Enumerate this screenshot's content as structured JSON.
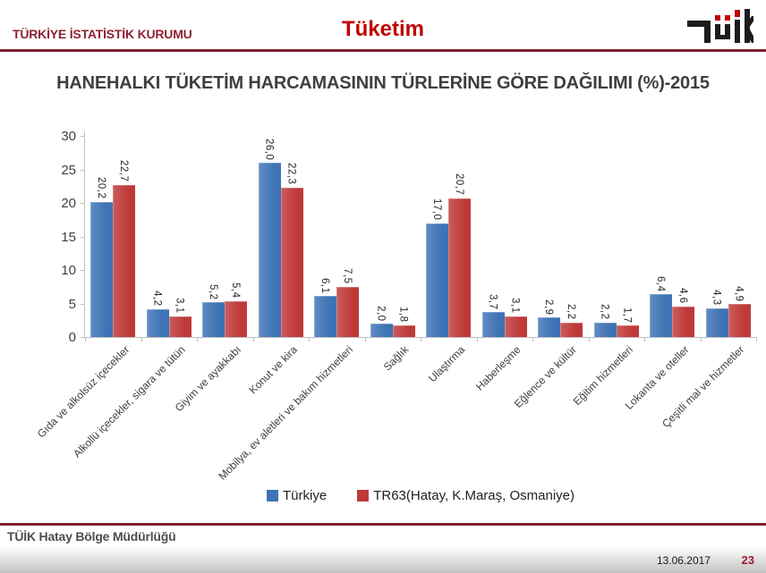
{
  "header": {
    "org_name": "TÜRKİYE İSTATİSTİK KURUMU",
    "section_title": "Tüketim",
    "logo_name": "TÜİK"
  },
  "chart_data": {
    "type": "bar",
    "title": "HANEHALKI TÜKETİM HARCAMASININ TÜRLERİNE GÖRE DAĞILIMI (%)-2015",
    "categories": [
      "Gıda ve alkolsüz içecekler",
      "Alkollü içecekler, sigara ve tütün",
      "Giyim ve ayakkabı",
      "Konut ve kira",
      "Mobilya, ev aletleri ve bakım hizmetleri",
      "Sağlık",
      "Ulaştırma",
      "Haberleşme",
      "Eğlence ve kültür",
      "Eğitim hizmetleri",
      "Lokanta ve oteller",
      "Çeşitli mal ve hizmetler"
    ],
    "series": [
      {
        "name": "Türkiye",
        "color": "#3e73b5",
        "values": [
          20.2,
          4.2,
          5.2,
          26.0,
          6.1,
          2.0,
          17.0,
          3.7,
          2.9,
          2.2,
          6.4,
          4.3
        ]
      },
      {
        "name": "TR63(Hatay, K.Maraş, Osmaniye)",
        "color": "#be3a38",
        "values": [
          22.7,
          3.1,
          5.4,
          22.3,
          7.5,
          1.8,
          20.7,
          3.1,
          2.2,
          1.7,
          4.6,
          4.9
        ]
      }
    ],
    "xlabel": "",
    "ylabel": "",
    "ylim": [
      0,
      30
    ],
    "yticks": [
      0,
      5,
      10,
      15,
      20,
      25,
      30
    ],
    "grid": false,
    "legend_position": "bottom",
    "decimal_separator": ",",
    "value_labels_rotated": true
  },
  "footer": {
    "left_text": "TÜİK Hatay Bölge Müdürlüğü",
    "date": "13.06.2017",
    "page_number": "23"
  },
  "colors": {
    "brand_maroon": "#7d2230",
    "header_text": "#8c2333",
    "section_title_red": "#c00000",
    "axis": "#bfbfbf",
    "text_dark": "#404040",
    "page_number_red": "#9e1b32",
    "logo_black": "#1c1c1c",
    "logo_red": "#c00000"
  }
}
